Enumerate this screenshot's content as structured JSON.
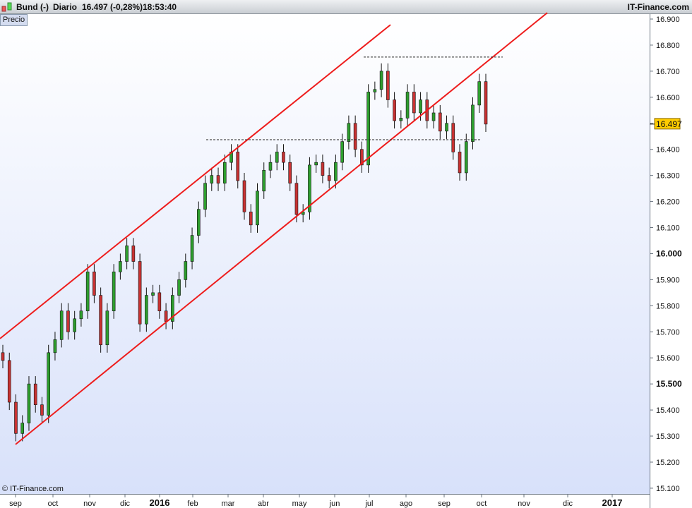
{
  "header": {
    "instrument": "Bund (-)",
    "period": "Diario",
    "quote": "16.497 (-0,28%)",
    "time": "18:53:40",
    "brand": "IT-Finance.com"
  },
  "panel_label": "Precio",
  "copyright": "© IT-Finance.com",
  "colors": {
    "up": "#2e9e2e",
    "down": "#c83232",
    "channel": "#ee1c1c",
    "marker": "#ffcc00"
  },
  "chart_data": {
    "type": "candlestick",
    "last_price_label": "16.497",
    "ylim": [
      15.1,
      16.9
    ],
    "y_ticks": [
      "16.900",
      "16.800",
      "16.700",
      "16.600",
      "16.500",
      "16.400",
      "16.300",
      "16.200",
      "16.100",
      "16.000",
      "15.900",
      "15.800",
      "15.700",
      "15.600",
      "15.500",
      "15.400",
      "15.300",
      "15.200",
      "15.100"
    ],
    "y_bold_ticks": [
      "16.000",
      "15.500"
    ],
    "x_ticks": [
      "sep",
      "oct",
      "nov",
      "dic",
      "2016",
      "feb",
      "mar",
      "abr",
      "may",
      "jun",
      "jul",
      "ago",
      "sep",
      "oct",
      "nov",
      "dic",
      "2017"
    ],
    "x_bold_ticks": [
      "2016",
      "2017"
    ],
    "closes": [
      15.59,
      15.43,
      15.31,
      15.35,
      15.5,
      15.42,
      15.38,
      15.62,
      15.67,
      15.78,
      15.7,
      15.75,
      15.78,
      15.93,
      15.84,
      15.65,
      15.78,
      15.93,
      15.97,
      16.03,
      15.97,
      15.73,
      15.84,
      15.85,
      15.78,
      15.74,
      15.84,
      15.9,
      15.97,
      16.07,
      16.17,
      16.27,
      16.3,
      16.27,
      16.35,
      16.39,
      16.28,
      16.16,
      16.11,
      16.24,
      16.32,
      16.35,
      16.39,
      16.35,
      16.27,
      16.15,
      16.16,
      16.34,
      16.35,
      16.3,
      16.28,
      16.35,
      16.43,
      16.5,
      16.4,
      16.34,
      16.62,
      16.63,
      16.7,
      16.59,
      16.51,
      16.52,
      16.62,
      16.54,
      16.59,
      16.51,
      16.54,
      16.47,
      16.5,
      16.39,
      16.31,
      16.43,
      16.57,
      16.66,
      16.497
    ],
    "channel_lines": [
      {
        "from_price": 15.674,
        "to_price": 16.878
      },
      {
        "from_price": 15.268,
        "to_price": 16.924
      }
    ],
    "levels": [
      16.437,
      16.754
    ]
  }
}
